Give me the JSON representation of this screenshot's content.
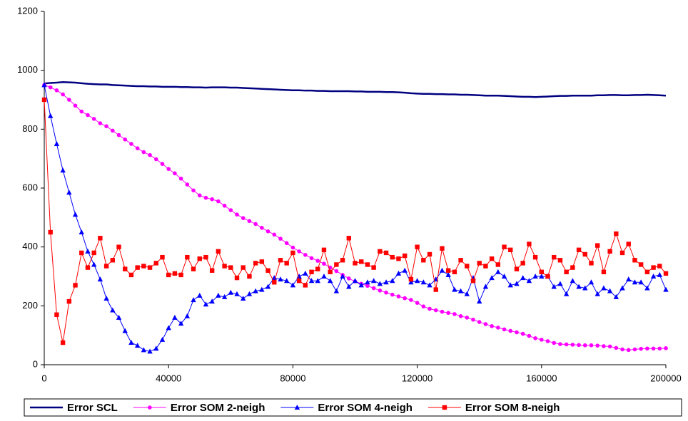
{
  "chart_data": {
    "type": "line",
    "x": [
      0,
      2000,
      4000,
      6000,
      8000,
      10000,
      12000,
      14000,
      16000,
      18000,
      20000,
      22000,
      24000,
      26000,
      28000,
      30000,
      32000,
      34000,
      36000,
      38000,
      40000,
      42000,
      44000,
      46000,
      48000,
      50000,
      52000,
      54000,
      56000,
      58000,
      60000,
      62000,
      64000,
      66000,
      68000,
      70000,
      72000,
      74000,
      76000,
      78000,
      80000,
      82000,
      84000,
      86000,
      88000,
      90000,
      92000,
      94000,
      96000,
      98000,
      100000,
      102000,
      104000,
      106000,
      108000,
      110000,
      112000,
      114000,
      116000,
      118000,
      120000,
      122000,
      124000,
      126000,
      128000,
      130000,
      132000,
      134000,
      136000,
      138000,
      140000,
      142000,
      144000,
      146000,
      148000,
      150000,
      152000,
      154000,
      156000,
      158000,
      160000,
      162000,
      164000,
      166000,
      168000,
      170000,
      172000,
      174000,
      176000,
      178000,
      180000,
      182000,
      184000,
      186000,
      188000,
      190000,
      192000,
      194000,
      196000,
      198000,
      200000
    ],
    "series": [
      {
        "name": "Error SCL",
        "color": "#000080",
        "marker": "none",
        "width": 2.5,
        "values": [
          955,
          957,
          958,
          960,
          959,
          958,
          956,
          954,
          953,
          952,
          952,
          950,
          949,
          948,
          947,
          946,
          946,
          945,
          945,
          944,
          944,
          944,
          943,
          943,
          942,
          942,
          941,
          942,
          942,
          942,
          941,
          941,
          940,
          939,
          938,
          937,
          936,
          935,
          934,
          933,
          932,
          932,
          931,
          931,
          930,
          930,
          929,
          929,
          929,
          929,
          928,
          928,
          927,
          927,
          927,
          926,
          926,
          925,
          924,
          922,
          921,
          920,
          920,
          919,
          919,
          918,
          918,
          917,
          917,
          916,
          915,
          914,
          914,
          914,
          913,
          912,
          911,
          910,
          910,
          909,
          910,
          911,
          912,
          913,
          913,
          914,
          914,
          914,
          914,
          915,
          915,
          916,
          916,
          915,
          915,
          916,
          916,
          917,
          916,
          915,
          914
        ]
      },
      {
        "name": "Error SOM 2-neigh",
        "color": "#ff00ff",
        "marker": "circle",
        "width": 1,
        "values": [
          950,
          942,
          932,
          918,
          900,
          880,
          860,
          848,
          835,
          820,
          810,
          795,
          780,
          765,
          750,
          735,
          722,
          712,
          698,
          682,
          665,
          650,
          632,
          612,
          592,
          575,
          567,
          562,
          555,
          540,
          525,
          510,
          498,
          488,
          478,
          465,
          453,
          442,
          428,
          413,
          398,
          385,
          373,
          362,
          353,
          343,
          330,
          318,
          305,
          293,
          283,
          275,
          268,
          260,
          252,
          245,
          238,
          232,
          226,
          220,
          210,
          198,
          190,
          185,
          180,
          176,
          172,
          165,
          160,
          153,
          145,
          138,
          131,
          126,
          120,
          115,
          110,
          105,
          98,
          90,
          85,
          80,
          74,
          70,
          69,
          68,
          67,
          66,
          66,
          65,
          63,
          62,
          57,
          52,
          50,
          52,
          54,
          55,
          55,
          55,
          56
        ]
      },
      {
        "name": "Error SOM 4-neigh",
        "color": "#0000ff",
        "marker": "triangle",
        "width": 1,
        "values": [
          950,
          845,
          750,
          660,
          585,
          510,
          450,
          385,
          340,
          290,
          225,
          185,
          160,
          115,
          75,
          65,
          50,
          45,
          55,
          85,
          125,
          160,
          140,
          165,
          220,
          235,
          205,
          215,
          235,
          230,
          245,
          240,
          225,
          240,
          250,
          255,
          265,
          295,
          290,
          285,
          270,
          300,
          310,
          285,
          285,
          300,
          285,
          250,
          300,
          265,
          285,
          270,
          280,
          285,
          275,
          280,
          285,
          310,
          320,
          280,
          285,
          280,
          270,
          290,
          320,
          305,
          255,
          250,
          240,
          295,
          215,
          265,
          295,
          315,
          300,
          270,
          275,
          295,
          285,
          300,
          300,
          300,
          265,
          275,
          240,
          285,
          265,
          260,
          280,
          240,
          260,
          250,
          230,
          260,
          290,
          280,
          280,
          260,
          300,
          305,
          255
        ]
      },
      {
        "name": "Error SOM 8-neigh",
        "color": "#ff0000",
        "marker": "square",
        "width": 1,
        "values": [
          900,
          450,
          170,
          75,
          215,
          270,
          380,
          330,
          380,
          430,
          335,
          355,
          400,
          325,
          305,
          330,
          335,
          330,
          345,
          365,
          305,
          310,
          305,
          365,
          325,
          360,
          365,
          320,
          385,
          335,
          330,
          295,
          330,
          300,
          345,
          350,
          320,
          280,
          355,
          345,
          380,
          285,
          270,
          315,
          325,
          390,
          315,
          340,
          355,
          430,
          345,
          350,
          340,
          330,
          385,
          380,
          365,
          360,
          370,
          290,
          400,
          355,
          375,
          255,
          395,
          320,
          315,
          355,
          335,
          285,
          345,
          335,
          360,
          340,
          400,
          390,
          325,
          345,
          410,
          365,
          315,
          300,
          365,
          355,
          315,
          330,
          390,
          375,
          345,
          405,
          315,
          385,
          445,
          380,
          410,
          355,
          340,
          315,
          330,
          335,
          310
        ]
      }
    ],
    "xlim": [
      0,
      200000
    ],
    "xticks": [
      0,
      40000,
      80000,
      120000,
      160000,
      200000
    ],
    "ylim": [
      0,
      1200
    ],
    "yticks": [
      0,
      200,
      400,
      600,
      800,
      1000,
      1200
    ],
    "grid": false,
    "legend": "bottom"
  }
}
